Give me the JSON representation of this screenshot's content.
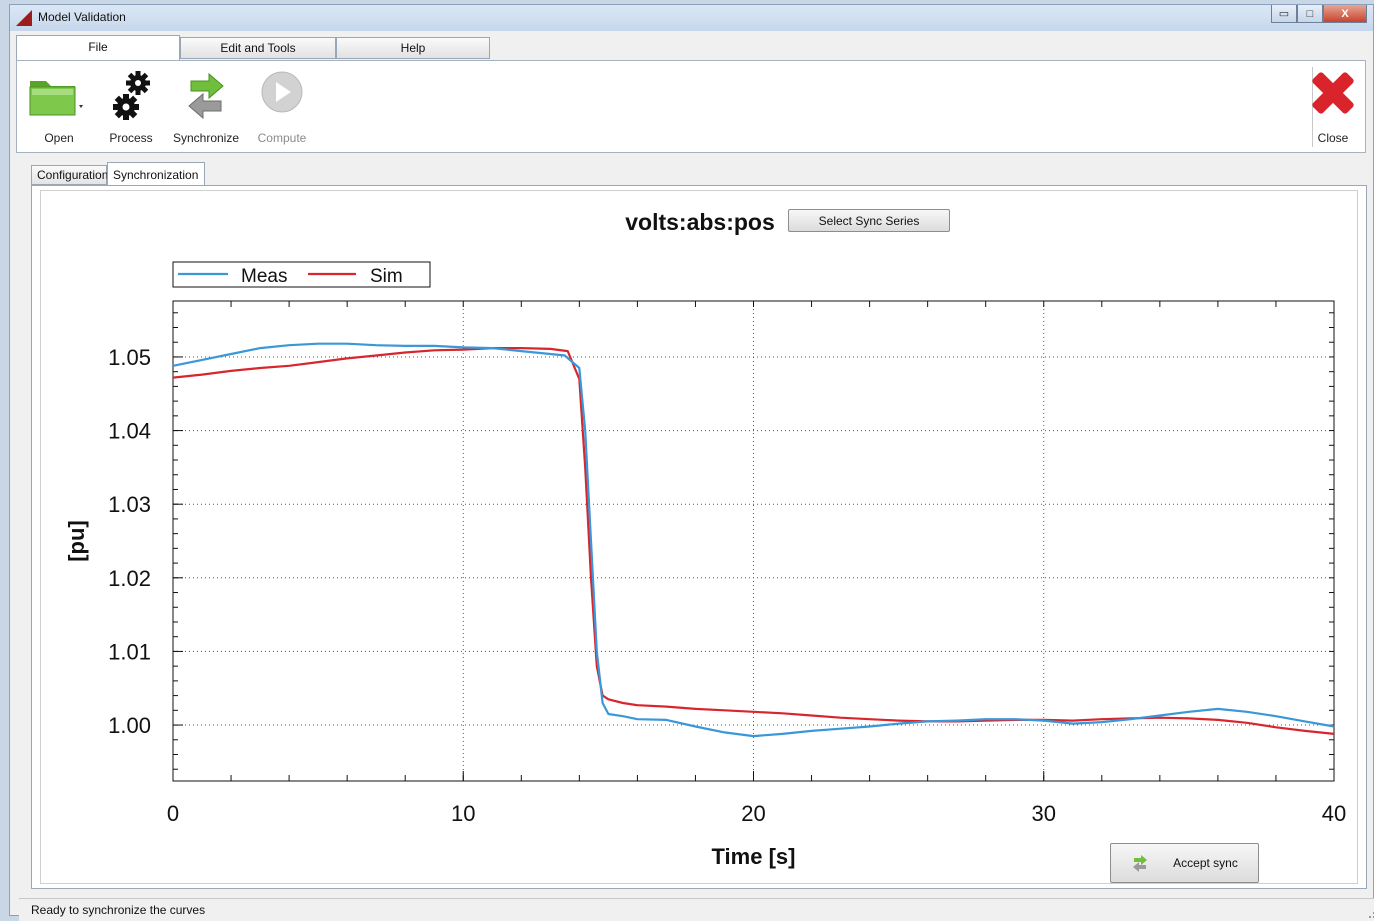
{
  "window": {
    "title": "Model Validation",
    "min_glyph": "▭",
    "max_glyph": "□",
    "close_glyph": "X"
  },
  "menu_tabs": [
    {
      "label": "File",
      "active": true
    },
    {
      "label": "Edit and Tools",
      "active": false
    },
    {
      "label": "Help",
      "active": false
    }
  ],
  "ribbon": {
    "open": {
      "label": "Open",
      "icon": "folder-icon"
    },
    "process": {
      "label": "Process",
      "icon": "gears-icon"
    },
    "synchronize": {
      "label": "Synchronize",
      "icon": "sync-arrows-icon"
    },
    "compute": {
      "label": "Compute",
      "icon": "play-icon",
      "disabled": true
    },
    "close": {
      "label": "Close",
      "icon": "red-x-icon"
    }
  },
  "page_tabs": [
    {
      "label": "Configuration",
      "active": false
    },
    {
      "label": "Synchronization",
      "active": true
    }
  ],
  "buttons": {
    "select_sync_series": "Select Sync Series",
    "accept_sync": "Accept sync"
  },
  "status": {
    "text": "Ready to synchronize the curves"
  },
  "colors": {
    "meas": "#3a97d8",
    "sim": "#d7262d",
    "accent_red": "#d8242a",
    "accent_green": "#6fbf3c"
  },
  "chart_data": {
    "type": "line",
    "title": "volts:abs:pos",
    "xlabel": "Time [s]",
    "ylabel": "[pu]",
    "xlim": [
      0,
      40
    ],
    "ylim": [
      0.9924,
      1.0576
    ],
    "xticks": [
      0,
      10,
      20,
      30,
      40
    ],
    "yticks": [
      1.0,
      1.01,
      1.02,
      1.03,
      1.04,
      1.05
    ],
    "ytick_labels": [
      "1.00",
      "1.01",
      "1.02",
      "1.03",
      "1.04",
      "1.05"
    ],
    "grid": true,
    "legend": "top-left",
    "series": [
      {
        "name": "Meas",
        "x": [
          0,
          1,
          2,
          3,
          4,
          5,
          6,
          7,
          8,
          9,
          10,
          11,
          12,
          13,
          13.5,
          14.0,
          14.2,
          14.4,
          14.6,
          14.8,
          15.0,
          15.5,
          16,
          17,
          18,
          19,
          20,
          21,
          22,
          23,
          24,
          25,
          26,
          27,
          28,
          29,
          30,
          31,
          32,
          33,
          34,
          35,
          36,
          37,
          38,
          39,
          40
        ],
        "y": [
          1.0488,
          1.0496,
          1.0504,
          1.0512,
          1.0516,
          1.0518,
          1.0518,
          1.0516,
          1.0515,
          1.0515,
          1.0513,
          1.0512,
          1.0508,
          1.0504,
          1.0502,
          1.0485,
          1.04,
          1.025,
          1.01,
          1.003,
          1.0015,
          1.0012,
          1.0008,
          1.0007,
          0.9998,
          0.999,
          0.9985,
          0.9988,
          0.9992,
          0.9995,
          0.9998,
          1.0002,
          1.0005,
          1.0006,
          1.0008,
          1.0008,
          1.0006,
          1.0002,
          1.0004,
          1.0008,
          1.0013,
          1.0018,
          1.0022,
          1.0018,
          1.0012,
          1.0005,
          0.9998
        ]
      },
      {
        "name": "Sim",
        "x": [
          0,
          1,
          2,
          3,
          4,
          5,
          6,
          7,
          8,
          9,
          10,
          11,
          12,
          13,
          13.6,
          14.0,
          14.2,
          14.4,
          14.6,
          14.8,
          15.0,
          15.5,
          16,
          17,
          18,
          19,
          20,
          21,
          22,
          23,
          24,
          25,
          26,
          27,
          28,
          29,
          30,
          31,
          32,
          33,
          34,
          35,
          36,
          37,
          38,
          39,
          40
        ],
        "y": [
          1.0472,
          1.0476,
          1.0481,
          1.0485,
          1.0488,
          1.0493,
          1.0498,
          1.0502,
          1.0506,
          1.0509,
          1.051,
          1.0512,
          1.0512,
          1.0511,
          1.0508,
          1.047,
          1.035,
          1.02,
          1.008,
          1.004,
          1.0035,
          1.003,
          1.0027,
          1.0025,
          1.0022,
          1.002,
          1.0018,
          1.0016,
          1.0013,
          1.001,
          1.0008,
          1.0006,
          1.0005,
          1.0005,
          1.0006,
          1.0007,
          1.0007,
          1.0006,
          1.0008,
          1.0009,
          1.001,
          1.0009,
          1.0007,
          1.0003,
          0.9997,
          0.9992,
          0.9988
        ]
      }
    ]
  }
}
